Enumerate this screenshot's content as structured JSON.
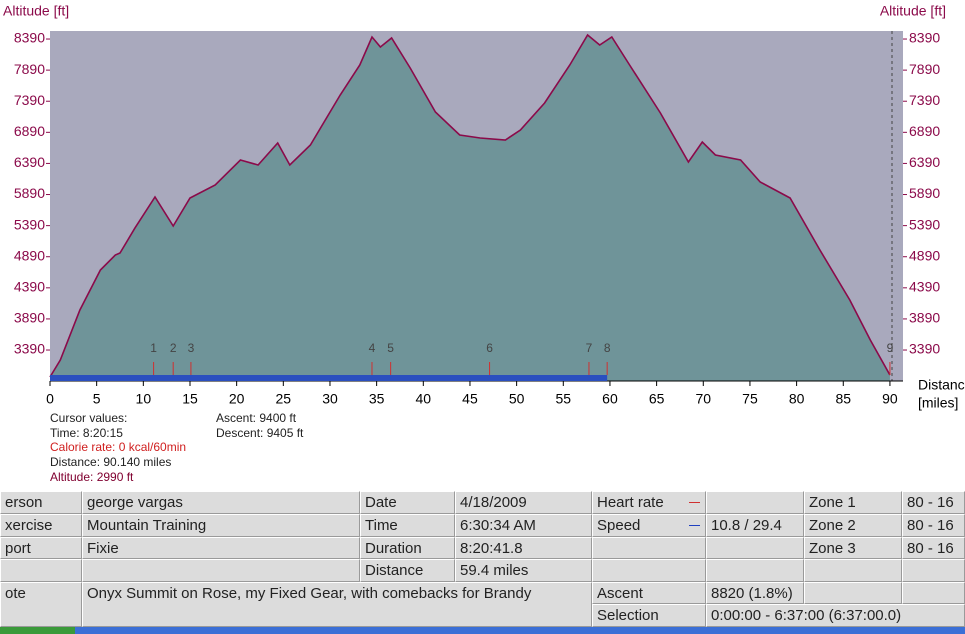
{
  "chart_data": {
    "type": "area",
    "y_label_left": "Altitude [ft]",
    "y_label_right": "Altitude [ft]",
    "x_label": "Distance",
    "x_unit": "[miles]",
    "x": [
      0,
      1.1,
      3.2,
      5.4,
      7.0,
      7.5,
      9.1,
      11.25,
      13.2,
      15,
      17.7,
      20.4,
      22.3,
      24.4,
      25.7,
      27.9,
      31.1,
      33.2,
      34.5,
      35.4,
      36.6,
      38.6,
      41.3,
      43.9,
      46.1,
      48.8,
      50.4,
      53,
      55.7,
      57.6,
      58.9,
      60.2,
      62.1,
      65.4,
      68.4,
      69.9,
      71.3,
      74,
      76.1,
      79.3,
      82.5,
      85.7,
      87.9,
      90
    ],
    "series": [
      {
        "name": "Altitude",
        "color": "#8b0a4a",
        "fill": "#6f9499",
        "values": [
          2956,
          3229,
          4033,
          4676,
          4918,
          4950,
          5350,
          5850,
          5384,
          5834,
          6043,
          6445,
          6365,
          6719,
          6365,
          6686,
          7490,
          7973,
          8423,
          8262,
          8407,
          7924,
          7217,
          6847,
          6799,
          6767,
          6928,
          7362,
          7973,
          8455,
          8294,
          8423,
          7973,
          7201,
          6413,
          6735,
          6526,
          6445,
          6091,
          5834,
          4998,
          4194,
          3551,
          2988
        ]
      }
    ],
    "xlim": [
      0,
      91.4
    ],
    "ylim": [
      2892,
      8519
    ],
    "xticks": [
      0,
      5,
      10,
      15,
      20,
      25,
      30,
      35,
      40,
      45,
      50,
      55,
      60,
      65,
      70,
      75,
      80,
      85,
      90
    ],
    "yticks": [
      3390,
      3890,
      4390,
      4890,
      5390,
      5890,
      6390,
      6890,
      7390,
      7890,
      8390
    ],
    "laps": {
      "labels": [
        "1",
        "2",
        "3",
        "4",
        "5",
        "6",
        "7",
        "8",
        "9"
      ],
      "x": [
        11.1,
        13.2,
        15.1,
        34.5,
        36.5,
        47.1,
        57.75,
        59.7,
        90
      ]
    },
    "selection": [
      0,
      59.7
    ],
    "plot_background": "#a9a9bd",
    "selection_color": "#2a4fbf"
  },
  "cursor": {
    "title": "Cursor values:",
    "time": "Time: 8:20:15",
    "calorie": "Calorie rate: 0 kcal/60min",
    "distance": "Distance: 90.140 miles",
    "altitude": "Altitude: 2990 ft",
    "ascent": "Ascent: 9400 ft",
    "descent": "Descent: 9405 ft"
  },
  "table": {
    "cells": [
      "erson",
      "george vargas",
      "Date",
      "4/18/2009",
      "Heart rate",
      "Zone 1",
      "80 - 16",
      "xercise",
      "Mountain Training",
      "Time",
      "6:30:34 AM",
      "Speed",
      "10.8 / 29.4",
      "Zone 2",
      "80 - 16",
      "port",
      "Fixie",
      "Duration",
      "8:20:41.8",
      "Zone 3",
      "80 - 16",
      "Distance",
      "59.4 miles",
      "ote",
      "Onyx Summit on Rose, my Fixed Gear, with comebacks for Brandy",
      "Ascent",
      "8820 (1.8%)",
      "Selection",
      "0:00:00 - 6:37:00 (6:37:00.0)"
    ]
  }
}
